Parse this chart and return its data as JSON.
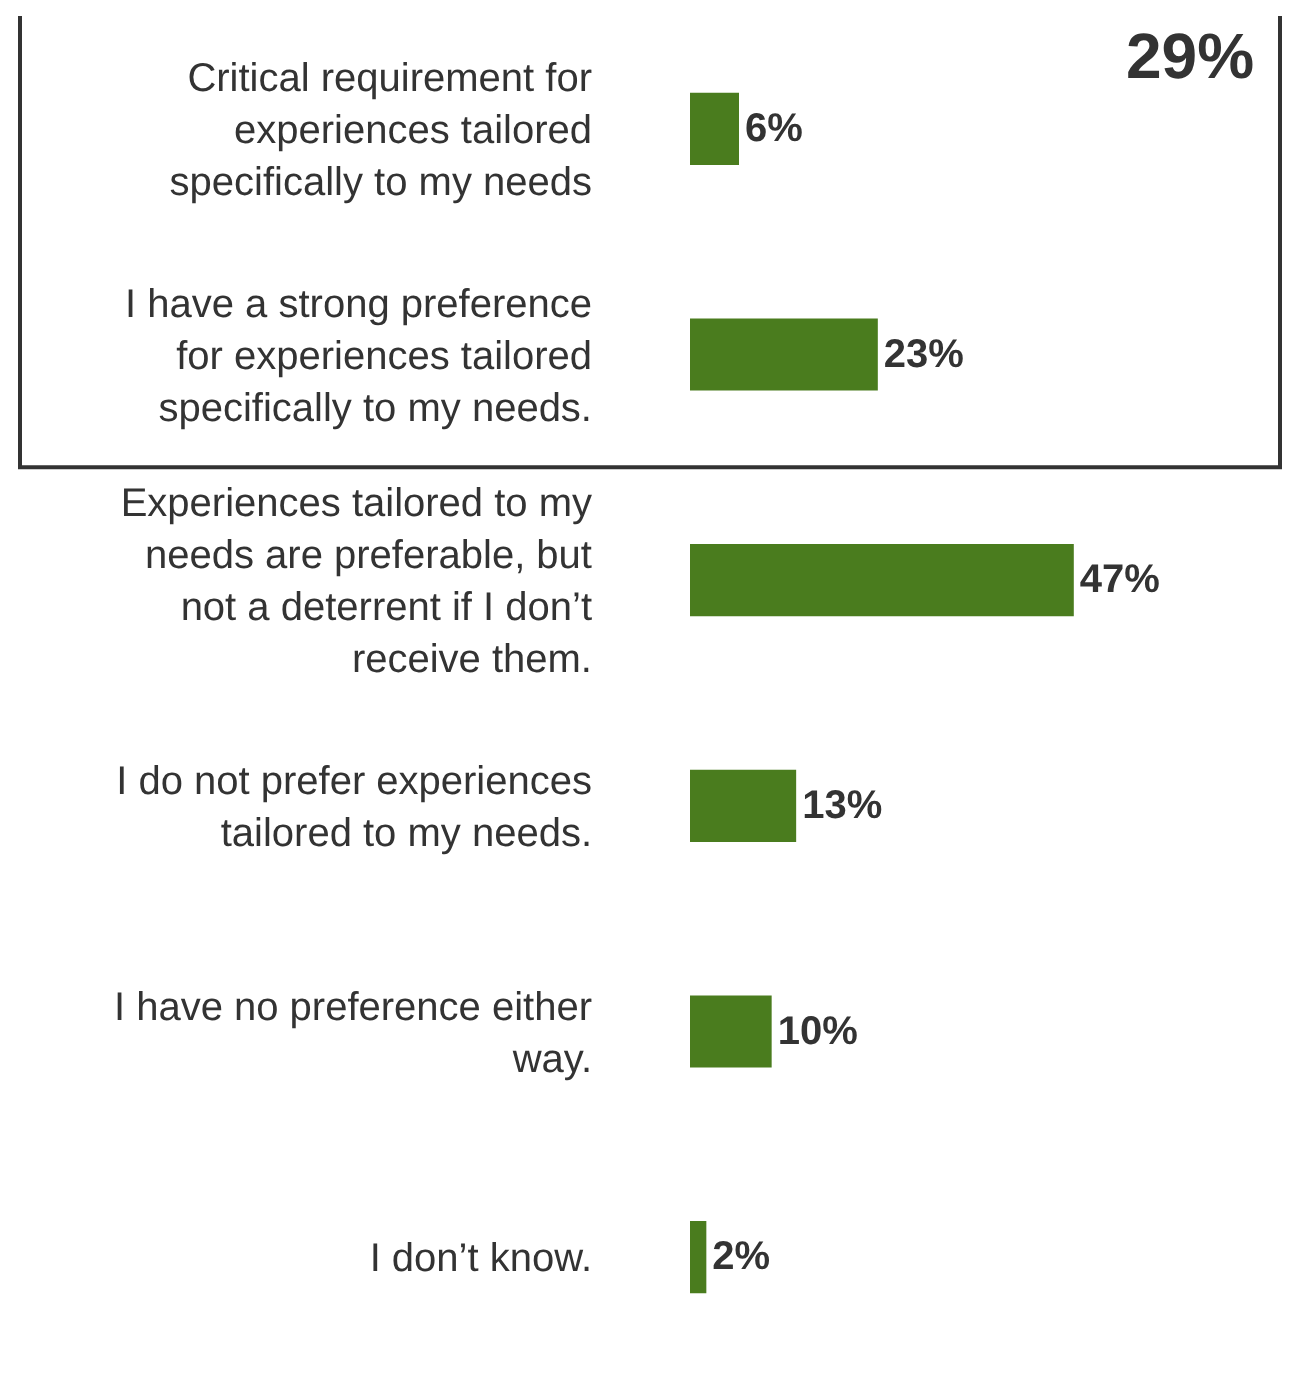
{
  "chart_data": {
    "type": "bar",
    "orientation": "horizontal",
    "categories": [
      "Critical requirement for experiences tailored specifically to my needs",
      "I have a strong preference for experiences tailored specifically to my needs.",
      "Experiences tailored to my needs are preferable, but not a deterrent if I don’t receive them.",
      "I do not prefer experiences tailored to my needs.",
      "I have no preference either way.",
      "I don’t know."
    ],
    "values": [
      6,
      23,
      47,
      13,
      10,
      2
    ],
    "value_labels": [
      "6%",
      "23%",
      "47%",
      "13%",
      "10%",
      "2%"
    ],
    "color": "#4a7c1e",
    "tick_labels": "y",
    "annotations": [
      "29%"
    ]
  }
}
